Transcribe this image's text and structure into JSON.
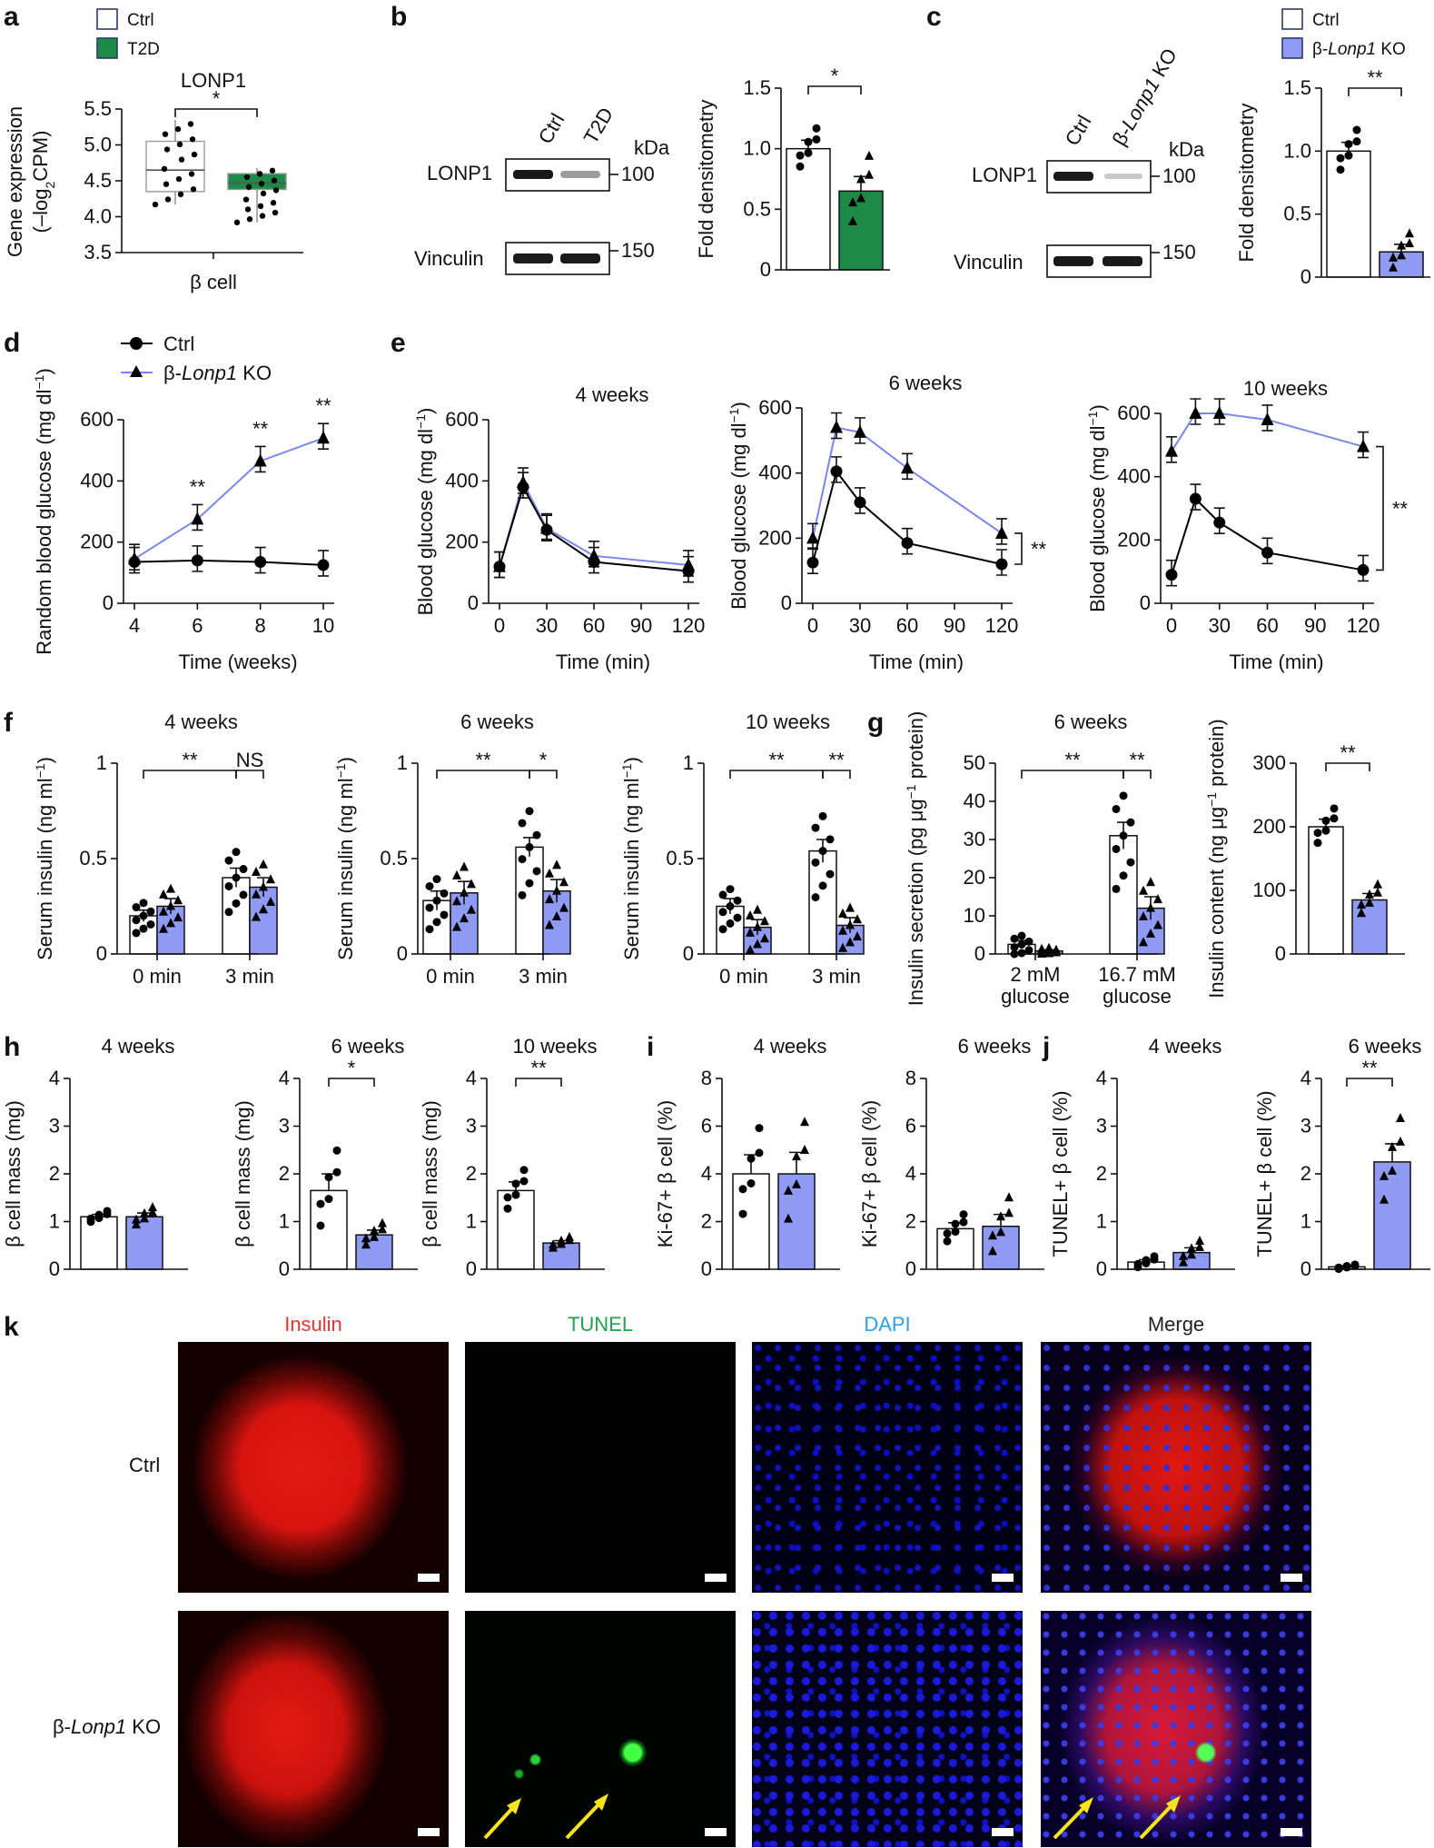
{
  "colors": {
    "ctrl": "#ffffff",
    "t2d": "#1e8a48",
    "ko": "#8f9af2",
    "ko_line": "#7b86ea",
    "ctrl_line": "#000000"
  },
  "panel_letters": {
    "a": "a",
    "b": "b",
    "c": "c",
    "d": "d",
    "e": "e",
    "f": "f",
    "g": "g",
    "h": "h",
    "i": "i",
    "j": "j",
    "k": "k"
  },
  "legend": {
    "ctrl": "Ctrl",
    "t2d": "T2D",
    "ko": "β-Lonp1 KO",
    "ko_prefix": "β-",
    "ko_gene": "Lonp1",
    "ko_suffix": " KO"
  },
  "blot_b": {
    "lanes": [
      "Ctrl",
      "T2D"
    ],
    "rows": [
      "LONP1",
      "Vinculin"
    ],
    "unit": "kDa",
    "sizes": [
      "100",
      "150"
    ]
  },
  "blot_c": {
    "lanes": [
      "Ctrl",
      "β-Lonp1 KO"
    ],
    "rows": [
      "LONP1",
      "Vinculin"
    ],
    "unit": "kDa",
    "sizes": [
      "100",
      "150"
    ]
  },
  "microscopy": {
    "columns": [
      "Insulin",
      "TUNEL",
      "DAPI",
      "Merge"
    ],
    "column_colors": [
      "#e8322f",
      "#22a04a",
      "#2b9fe0",
      "#222222"
    ],
    "rows": [
      "Ctrl",
      "β-Lonp1 KO"
    ]
  },
  "chart_data": [
    {
      "id": "a",
      "type": "box",
      "title": "LONP1",
      "ylabel": "Gene expression (–log2CPM)",
      "xlabel": "β cell",
      "ylim": [
        3.5,
        5.5
      ],
      "yticks": [
        "3.5",
        "4.0",
        "4.5",
        "5.0",
        "5.5"
      ],
      "series": [
        {
          "name": "Ctrl",
          "median": 4.65,
          "q1": 4.35,
          "q3": 5.05,
          "min": 4.17,
          "max": 5.35
        },
        {
          "name": "T2D",
          "median": 4.47,
          "q1": 4.38,
          "q3": 4.6,
          "min": 3.92,
          "max": 4.68
        }
      ],
      "sig": "*"
    },
    {
      "id": "b",
      "type": "bar",
      "ylabel": "Fold densitometry",
      "ylim": [
        0,
        1.5
      ],
      "yticks": [
        "0",
        "0.5",
        "1.0",
        "1.5"
      ],
      "categories": [
        "Ctrl",
        "T2D"
      ],
      "values": [
        1.0,
        0.65
      ],
      "errors": [
        0.07,
        0.12
      ],
      "sig": "*"
    },
    {
      "id": "c",
      "type": "bar",
      "ylabel": "Fold densitometry",
      "ylim": [
        0,
        1.5
      ],
      "yticks": [
        "0",
        "0.5",
        "1.0",
        "1.5"
      ],
      "categories": [
        "Ctrl",
        "β-Lonp1 KO"
      ],
      "values": [
        1.0,
        0.2
      ],
      "errors": [
        0.07,
        0.06
      ],
      "sig": "**"
    },
    {
      "id": "d",
      "type": "line",
      "ylabel": "Random blood glucose (mg dl−1)",
      "xlabel": "Time (weeks)",
      "x": [
        4,
        6,
        8,
        10
      ],
      "xticks": [
        "4",
        "6",
        "8",
        "10"
      ],
      "ylim": [
        0,
        600
      ],
      "yticks": [
        "0",
        "200",
        "400",
        "600"
      ],
      "series": [
        {
          "name": "Ctrl",
          "values": [
            135,
            140,
            135,
            125
          ]
        },
        {
          "name": "β-Lonp1 KO",
          "values": [
            145,
            275,
            465,
            540
          ]
        }
      ],
      "sig": [
        "**",
        "**",
        "**"
      ]
    },
    {
      "id": "e1",
      "type": "line",
      "title": "4 weeks",
      "ylabel": "Blood glucose (mg dl−1)",
      "xlabel": "Time (min)",
      "x": [
        0,
        15,
        30,
        60,
        120
      ],
      "xticks": [
        "0",
        "30",
        "60",
        "90",
        "120"
      ],
      "ylim": [
        0,
        600
      ],
      "yticks": [
        "0",
        "200",
        "400",
        "600"
      ],
      "series": [
        {
          "name": "Ctrl",
          "values": [
            120,
            380,
            240,
            135,
            105
          ]
        },
        {
          "name": "β-Lonp1 KO",
          "values": [
            120,
            395,
            245,
            155,
            125
          ]
        }
      ]
    },
    {
      "id": "e2",
      "type": "line",
      "title": "6 weeks",
      "ylabel": "Blood glucose (mg dl−1)",
      "xlabel": "Time (min)",
      "x": [
        0,
        15,
        30,
        60,
        120
      ],
      "xticks": [
        "0",
        "30",
        "60",
        "90",
        "120"
      ],
      "ylim": [
        0,
        600
      ],
      "yticks": [
        "0",
        "200",
        "400",
        "600"
      ],
      "series": [
        {
          "name": "Ctrl",
          "values": [
            125,
            405,
            310,
            185,
            120
          ]
        },
        {
          "name": "β-Lonp1 KO",
          "values": [
            200,
            540,
            525,
            415,
            215
          ]
        }
      ],
      "sig": "**"
    },
    {
      "id": "e3",
      "type": "line",
      "title": "10 weeks",
      "ylabel": "Blood glucose (mg dl−1)",
      "xlabel": "Time (min)",
      "x": [
        0,
        15,
        30,
        60,
        120
      ],
      "xticks": [
        "0",
        "30",
        "60",
        "90",
        "120"
      ],
      "ylim": [
        0,
        600
      ],
      "yticks": [
        "0",
        "200",
        "400",
        "600"
      ],
      "series": [
        {
          "name": "Ctrl",
          "values": [
            90,
            330,
            255,
            160,
            105
          ]
        },
        {
          "name": "β-Lonp1 KO",
          "values": [
            480,
            600,
            600,
            580,
            495
          ]
        }
      ],
      "sig": "**"
    },
    {
      "id": "f1",
      "type": "bar",
      "title": "4 weeks",
      "ylabel": "Serum insulin (ng ml−1)",
      "categories": [
        "0 min",
        "3 min"
      ],
      "ylim": [
        0,
        1
      ],
      "yticks": [
        "0",
        "0.5",
        "1"
      ],
      "series": [
        {
          "name": "Ctrl",
          "values": [
            0.2,
            0.4
          ],
          "errors": [
            0.03,
            0.05
          ]
        },
        {
          "name": "β-Lonp1 KO",
          "values": [
            0.25,
            0.35
          ],
          "errors": [
            0.04,
            0.05
          ]
        }
      ],
      "sig": [
        "**",
        "NS"
      ]
    },
    {
      "id": "f2",
      "type": "bar",
      "title": "6 weeks",
      "ylabel": "Serum insulin (ng ml−1)",
      "categories": [
        "0 min",
        "3 min"
      ],
      "ylim": [
        0,
        1
      ],
      "yticks": [
        "0",
        "0.5",
        "1"
      ],
      "series": [
        {
          "name": "Ctrl",
          "values": [
            0.28,
            0.56
          ],
          "errors": [
            0.05,
            0.05
          ]
        },
        {
          "name": "β-Lonp1 KO",
          "values": [
            0.32,
            0.33
          ],
          "errors": [
            0.06,
            0.06
          ]
        }
      ],
      "sig": [
        "**",
        "*"
      ]
    },
    {
      "id": "f3",
      "type": "bar",
      "title": "10 weeks",
      "ylabel": "Serum insulin (ng ml−1)",
      "categories": [
        "0 min",
        "3 min"
      ],
      "ylim": [
        0,
        1
      ],
      "yticks": [
        "0",
        "0.5",
        "1"
      ],
      "series": [
        {
          "name": "Ctrl",
          "values": [
            0.25,
            0.54
          ],
          "errors": [
            0.04,
            0.06
          ]
        },
        {
          "name": "β-Lonp1 KO",
          "values": [
            0.14,
            0.15
          ],
          "errors": [
            0.04,
            0.04
          ]
        }
      ],
      "sig": [
        "**",
        "**"
      ]
    },
    {
      "id": "g1",
      "type": "bar",
      "title": "6 weeks",
      "ylabel": "Insulin secretion (pg μg−1 protein)",
      "categories": [
        "2 mM glucose",
        "16.7 mM glucose"
      ],
      "ylim": [
        0,
        50
      ],
      "yticks": [
        "0",
        "10",
        "20",
        "30",
        "40",
        "50"
      ],
      "series": [
        {
          "name": "Ctrl",
          "values": [
            2.5,
            31
          ],
          "errors": [
            1,
            3.5
          ]
        },
        {
          "name": "β-Lonp1 KO",
          "values": [
            0.8,
            12
          ],
          "errors": [
            0.3,
            3
          ]
        }
      ],
      "sig": [
        "**",
        "**"
      ]
    },
    {
      "id": "g2",
      "type": "bar",
      "ylabel": "Insulin content (ng μg−1 protein)",
      "categories": [
        "Ctrl",
        "β-Lonp1 KO"
      ],
      "ylim": [
        0,
        300
      ],
      "yticks": [
        "0",
        "100",
        "200",
        "300"
      ],
      "values": [
        200,
        85
      ],
      "errors": [
        12,
        10
      ],
      "sig": "**"
    },
    {
      "id": "h1",
      "type": "bar",
      "title": "4 weeks",
      "ylabel": "β cell mass (mg)",
      "categories": [
        "Ctrl",
        "β-Lonp1 KO"
      ],
      "ylim": [
        0,
        4
      ],
      "yticks": [
        "0",
        "1",
        "2",
        "3",
        "4"
      ],
      "values": [
        1.1,
        1.1
      ],
      "errors": [
        0.05,
        0.08
      ]
    },
    {
      "id": "h2",
      "type": "bar",
      "title": "6 weeks",
      "ylabel": "β cell mass (mg)",
      "categories": [
        "Ctrl",
        "β-Lonp1 KO"
      ],
      "ylim": [
        0,
        4
      ],
      "yticks": [
        "0",
        "1",
        "2",
        "3",
        "4"
      ],
      "values": [
        1.65,
        0.72
      ],
      "errors": [
        0.35,
        0.1
      ],
      "sig": "*"
    },
    {
      "id": "h3",
      "type": "bar",
      "title": "10 weeks",
      "ylabel": "β cell mass (mg)",
      "categories": [
        "Ctrl",
        "β-Lonp1 KO"
      ],
      "ylim": [
        0,
        4
      ],
      "yticks": [
        "0",
        "1",
        "2",
        "3",
        "4"
      ],
      "values": [
        1.65,
        0.55
      ],
      "errors": [
        0.18,
        0.05
      ],
      "sig": "**"
    },
    {
      "id": "i1",
      "type": "bar",
      "title": "4 weeks",
      "ylabel": "Ki-67+ β cell (%)",
      "categories": [
        "Ctrl",
        "β-Lonp1 KO"
      ],
      "ylim": [
        0,
        8
      ],
      "yticks": [
        "0",
        "2",
        "4",
        "6",
        "8"
      ],
      "values": [
        4.0,
        4.0
      ],
      "errors": [
        0.8,
        0.9
      ]
    },
    {
      "id": "i2",
      "type": "bar",
      "title": "6 weeks",
      "ylabel": "Ki-67+ β cell (%)",
      "categories": [
        "Ctrl",
        "β-Lonp1 KO"
      ],
      "ylim": [
        0,
        8
      ],
      "yticks": [
        "0",
        "2",
        "4",
        "6",
        "8"
      ],
      "values": [
        1.7,
        1.8
      ],
      "errors": [
        0.25,
        0.5
      ]
    },
    {
      "id": "j1",
      "type": "bar",
      "title": "4 weeks",
      "ylabel": "TUNEL+ β cell (%)",
      "categories": [
        "Ctrl",
        "β-Lonp1 KO"
      ],
      "ylim": [
        0,
        4
      ],
      "yticks": [
        "0",
        "1",
        "2",
        "3",
        "4"
      ],
      "values": [
        0.15,
        0.35
      ],
      "errors": [
        0.05,
        0.1
      ]
    },
    {
      "id": "j2",
      "type": "bar",
      "title": "6 weeks",
      "ylabel": "TUNEL+ β cell (%)",
      "categories": [
        "Ctrl",
        "β-Lonp1 KO"
      ],
      "ylim": [
        0,
        4
      ],
      "yticks": [
        "0",
        "1",
        "2",
        "3",
        "4"
      ],
      "values": [
        0.05,
        2.25
      ],
      "errors": [
        0.02,
        0.38
      ],
      "sig": "**"
    }
  ]
}
